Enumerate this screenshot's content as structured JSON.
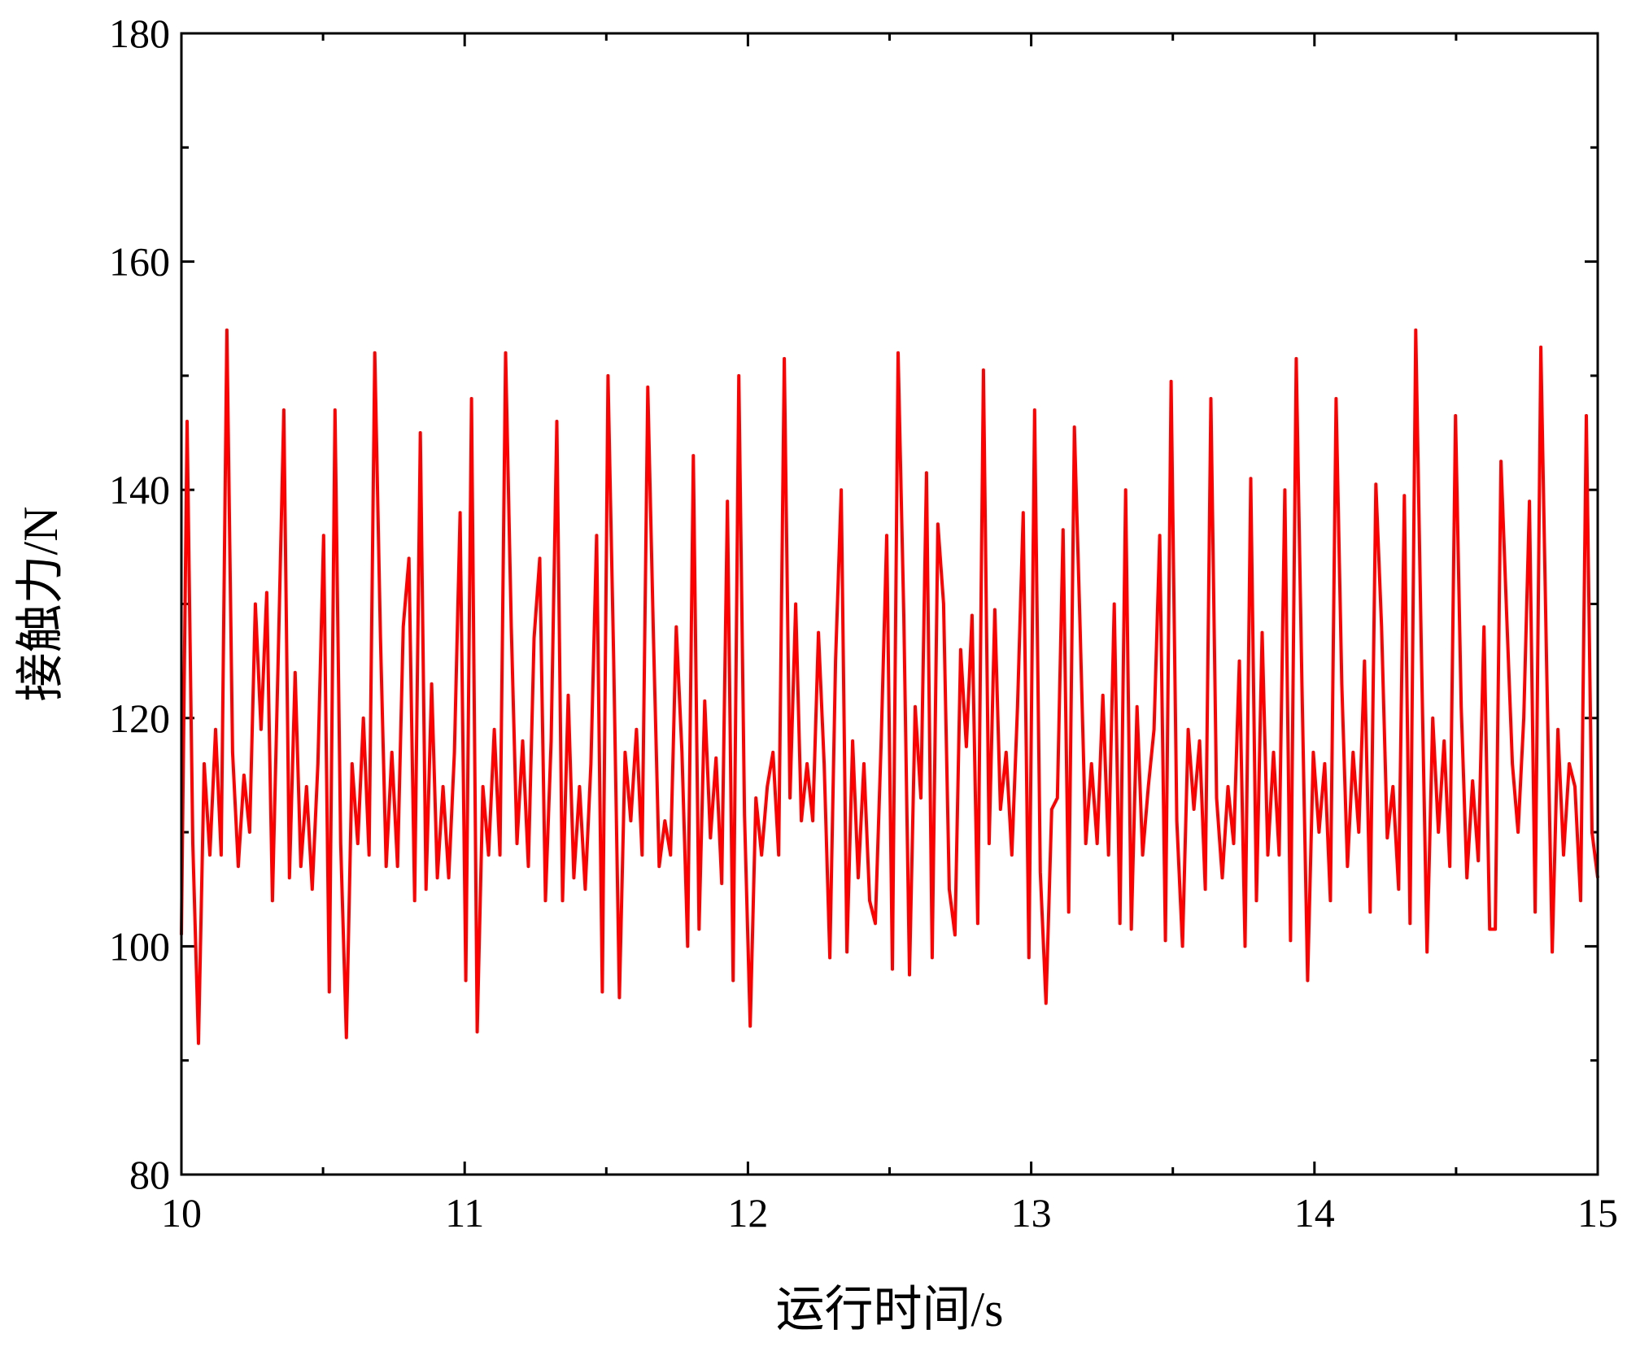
{
  "chart_data": {
    "type": "line",
    "title": "",
    "xlabel": "运行时间/s",
    "ylabel": "接触力/N",
    "xlim": [
      10,
      15
    ],
    "ylim": [
      80,
      180
    ],
    "xticks": [
      10,
      11,
      12,
      13,
      14,
      15
    ],
    "yticks": [
      80,
      100,
      120,
      140,
      160,
      180
    ],
    "xtick_labels": [
      "10",
      "11",
      "12",
      "13",
      "14",
      "15"
    ],
    "ytick_labels": [
      "80",
      "100",
      "120",
      "140",
      "160",
      "180"
    ],
    "grid": false,
    "legend": "none",
    "series": [
      {
        "color": "#ff0000",
        "x_start": 10,
        "x_end": 15,
        "sampling": "evenly spaced",
        "values": [
          101,
          146,
          109,
          91.5,
          116,
          108,
          119,
          108,
          154,
          117,
          107,
          115,
          110,
          130,
          119,
          131,
          104,
          125,
          147,
          106,
          124,
          107,
          114,
          105,
          116,
          136,
          96,
          147,
          109,
          92,
          116,
          109,
          120,
          108,
          152,
          127,
          107,
          117,
          107,
          128,
          134,
          104,
          145,
          105,
          123,
          106,
          114,
          106,
          117,
          138,
          97,
          148,
          92.5,
          114,
          108,
          119,
          108,
          152,
          128,
          109,
          118,
          107,
          127,
          134,
          104,
          118,
          146,
          104,
          122,
          106,
          114,
          105,
          116,
          136,
          96,
          150,
          125,
          95.5,
          117,
          111,
          119,
          108,
          149,
          127,
          107,
          111,
          108,
          128,
          117,
          100,
          143,
          101.5,
          121.5,
          109.5,
          116.5,
          105.5,
          139,
          97,
          150,
          111.5,
          93,
          113,
          108,
          114,
          117,
          108,
          151.5,
          113,
          130,
          111,
          116,
          111,
          127.5,
          116,
          99,
          125,
          140,
          99.5,
          118,
          106,
          116,
          104,
          102,
          117.5,
          136,
          98,
          152,
          129,
          97.5,
          121,
          113,
          141.5,
          99,
          137,
          130,
          105,
          101,
          126,
          117.5,
          129,
          102,
          150.5,
          109,
          129.5,
          112,
          117,
          108,
          121,
          138,
          99,
          147,
          106.5,
          95,
          112,
          113,
          136.5,
          103,
          145.5,
          128,
          109,
          116,
          109,
          122,
          108,
          130,
          102,
          140,
          101.5,
          121,
          108,
          114,
          119,
          136,
          100.5,
          149.5,
          111,
          100,
          119,
          112,
          118,
          105,
          148,
          113,
          106,
          114,
          109,
          125,
          100,
          141,
          104,
          127.5,
          108,
          117,
          108,
          140,
          100.5,
          151.5,
          123,
          97,
          117,
          110,
          116,
          104,
          148,
          123,
          107,
          117,
          110,
          125,
          103,
          140.5,
          128,
          109.5,
          114,
          105,
          139.5,
          102,
          154,
          126,
          99.5,
          120,
          110,
          118,
          107,
          146.5,
          121,
          106,
          114.5,
          107.5,
          128,
          101.5,
          101.5,
          142.5,
          129,
          116,
          110,
          120,
          139,
          103,
          152.5,
          125,
          99.5,
          119,
          108,
          116,
          114,
          104,
          146.5,
          110,
          106
        ]
      }
    ]
  }
}
